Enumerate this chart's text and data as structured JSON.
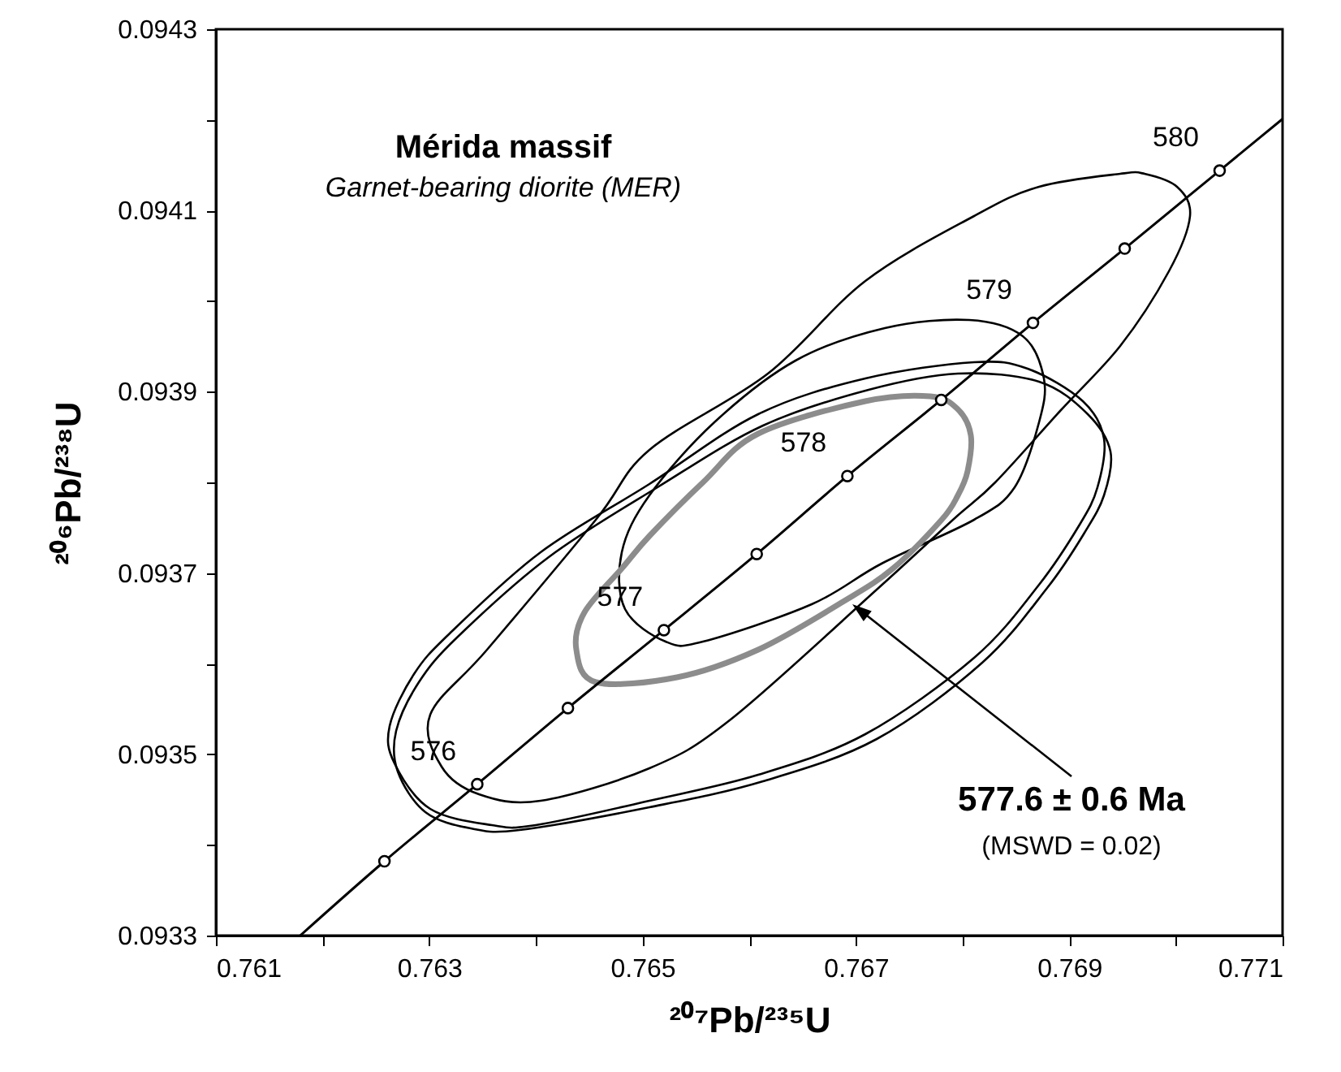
{
  "chart_data": {
    "type": "line",
    "title": "Mérida massif",
    "subtitle": "Garnet-bearing diorite (MER)",
    "xlabel": "²⁰⁷Pb/²³⁵U",
    "ylabel": "²⁰⁶Pb/²³⁸U",
    "xlim": [
      0.761,
      0.771
    ],
    "ylim": [
      0.0933,
      0.0943
    ],
    "xticks": [
      0.761,
      {
        "value": 0.762,
        "label": null
      },
      0.763,
      {
        "value": 0.764,
        "label": null
      },
      0.765,
      {
        "value": 0.766,
        "label": null
      },
      0.767,
      {
        "value": 0.768,
        "label": null
      },
      0.769,
      {
        "value": 0.77,
        "label": null
      },
      0.771
    ],
    "yticks": [
      0.0933,
      {
        "value": 0.0934,
        "label": null
      },
      0.0935,
      {
        "value": 0.0936,
        "label": null
      },
      0.0937,
      {
        "value": 0.0938,
        "label": null
      },
      0.0939,
      {
        "value": 0.094,
        "label": null
      },
      0.0941,
      {
        "value": 0.0942,
        "label": null
      },
      0.0943
    ],
    "series": [
      {
        "type": "line",
        "color": "#000000",
        "x": [
          0.76179,
          0.76258,
          0.76345,
          0.7643,
          0.7652,
          0.76607,
          0.76692,
          0.7678,
          0.76866,
          0.76952,
          0.77041,
          0.771
        ],
        "values": [
          0.0933,
          0.093382,
          0.093467,
          0.093551,
          0.093637,
          0.093721,
          0.093807,
          0.093891,
          0.093976,
          0.094058,
          0.094144,
          0.094201
        ]
      },
      {
        "type": "scatter",
        "marker": "circle",
        "color": "#000000",
        "x": [
          0.76258,
          0.76345,
          0.7643,
          0.7652,
          0.76607,
          0.76692,
          0.7678,
          0.76866,
          0.76952,
          0.77041
        ],
        "values": [
          0.093382,
          0.093467,
          0.093551,
          0.093637,
          0.093721,
          0.093807,
          0.093891,
          0.093976,
          0.094058,
          0.094144
        ]
      }
    ],
    "annotations": [
      {
        "text": "576",
        "x": 0.76345,
        "y": 0.093467
      },
      {
        "text": "577",
        "x": 0.7652,
        "y": 0.093637
      },
      {
        "text": "578",
        "x": 0.76692,
        "y": 0.093807
      },
      {
        "text": "579",
        "x": 0.76866,
        "y": 0.093976
      },
      {
        "text": "580",
        "x": 0.77041,
        "y": 0.094144
      },
      "577.6 ± 0.6 Ma",
      "(MSWD = 0.02)"
    ]
  }
}
